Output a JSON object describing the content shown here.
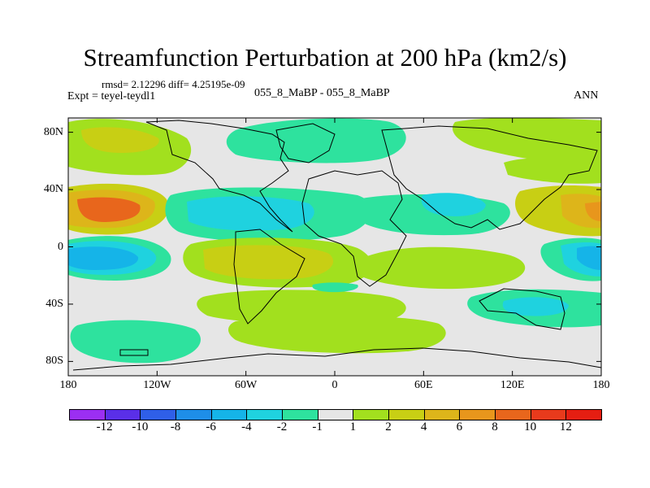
{
  "title": "Streamfunction Perturbation at 200 hPa (km2/s)",
  "stats_line": "rmsd= 2.12296 diff= 4.25195e-09",
  "expt_line": "Expt = teyel-teydl1",
  "cases_line": "055_8_MaBP - 055_8_MaBP",
  "season": "ANN",
  "chart_data": {
    "type": "heatmap",
    "projection": "cylindrical-equidistant",
    "variable": "Streamfunction Perturbation at 200 hPa",
    "units": "km2/s",
    "x_range": [
      -180,
      180
    ],
    "y_range": [
      -90,
      90
    ],
    "x_ticks": [
      {
        "value": -180,
        "label": "180"
      },
      {
        "value": -120,
        "label": "120W"
      },
      {
        "value": -60,
        "label": "60W"
      },
      {
        "value": 0,
        "label": "0"
      },
      {
        "value": 60,
        "label": "60E"
      },
      {
        "value": 120,
        "label": "120E"
      },
      {
        "value": 180,
        "label": "180"
      }
    ],
    "y_ticks": [
      {
        "value": 80,
        "label": "80N"
      },
      {
        "value": 40,
        "label": "40N"
      },
      {
        "value": 0,
        "label": "0"
      },
      {
        "value": -40,
        "label": "40S"
      },
      {
        "value": -80,
        "label": "80S"
      }
    ],
    "contour_levels": [
      -12,
      -10,
      -8,
      -6,
      -4,
      -2,
      -1,
      1,
      2,
      4,
      6,
      8,
      10,
      12
    ],
    "colorbar_colors": [
      "#9b2ff2",
      "#5a2fe8",
      "#2f5fe8",
      "#1e8ee8",
      "#15b4e8",
      "#1fd2df",
      "#2ee29e",
      "#e6e6e6",
      "#a2e01e",
      "#c8cf14",
      "#ddb51a",
      "#e8961c",
      "#e8661c",
      "#e83a1c",
      "#e51e12"
    ],
    "fields": [
      {
        "sign": "+",
        "lon": -140,
        "lat": 18,
        "value": 9.5
      },
      {
        "sign": "+",
        "lon": 175,
        "lat": 18,
        "value": 6
      },
      {
        "sign": "-",
        "lon": -155,
        "lat": -13,
        "value": -6
      },
      {
        "sign": "-",
        "lon": 178,
        "lat": -12,
        "value": -6
      },
      {
        "sign": "+",
        "lon": -45,
        "lat": -11,
        "value": 3.5
      },
      {
        "sign": "-",
        "lon": -85,
        "lat": 20,
        "value": -3
      },
      {
        "sign": "-",
        "lon": -20,
        "lat": 15,
        "value": -2
      },
      {
        "sign": "-",
        "lon": 70,
        "lat": 25,
        "value": -2
      },
      {
        "sign": "-",
        "lon": -10,
        "lat": 65,
        "value": -1.5
      },
      {
        "sign": "+",
        "lon": -150,
        "lat": 65,
        "value": 2.5
      },
      {
        "sign": "+",
        "lon": 20,
        "lat": -55,
        "value": 1.8
      },
      {
        "sign": "-",
        "lon": 135,
        "lat": -40,
        "value": -2.2
      },
      {
        "sign": "-",
        "lon": -150,
        "lat": -72,
        "value": -1.5
      },
      {
        "sign": "+",
        "lon": 160,
        "lat": 55,
        "value": 1.5
      }
    ]
  },
  "colorbar": {
    "labels": [
      "-12",
      "-10",
      "-8",
      "-6",
      "-4",
      "-2",
      "-1",
      "1",
      "2",
      "4",
      "6",
      "8",
      "10",
      "12"
    ]
  }
}
